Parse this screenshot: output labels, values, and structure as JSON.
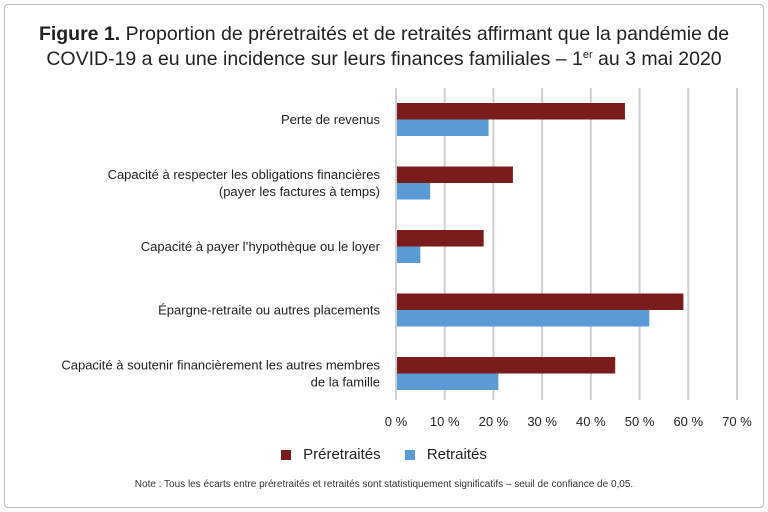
{
  "title": {
    "figure_label": "Figure 1.",
    "line1": "Proportion de préretraités et de retraités affirmant que la pandémie de",
    "line2_before": "COVID-19 a eu une incidence sur leurs finances familiales – 1",
    "line2_sup": "er",
    "line2_after": " au 3 mai 2020"
  },
  "chart_data": {
    "type": "bar",
    "orientation": "horizontal",
    "categories": [
      [
        "Perte de revenus"
      ],
      [
        "Capacité à respecter les obligations financières",
        "(payer les factures à temps)"
      ],
      [
        "Capacité à payer l’hypothèque ou le loyer"
      ],
      [
        "Épargne-retraite ou autres placements"
      ],
      [
        "Capacité à soutenir financièrement les autres membres",
        "de la famille"
      ]
    ],
    "series": [
      {
        "name": "Préretraités",
        "values": [
          47,
          24,
          18,
          59,
          45
        ],
        "color": "#7b1c1c"
      },
      {
        "name": "Retraités",
        "values": [
          19,
          7,
          5,
          52,
          21
        ],
        "color": "#5b9bd5"
      }
    ],
    "xlim": [
      0,
      70
    ],
    "xticks": [
      0,
      10,
      20,
      30,
      40,
      50,
      60,
      70
    ],
    "tick_format": "{v} %",
    "grid": true,
    "legend_position": "bottom"
  },
  "note": "Note : Tous les écarts entre préretraités et retraités sont statistiquement significatifs – seuil de confiance de 0,05."
}
